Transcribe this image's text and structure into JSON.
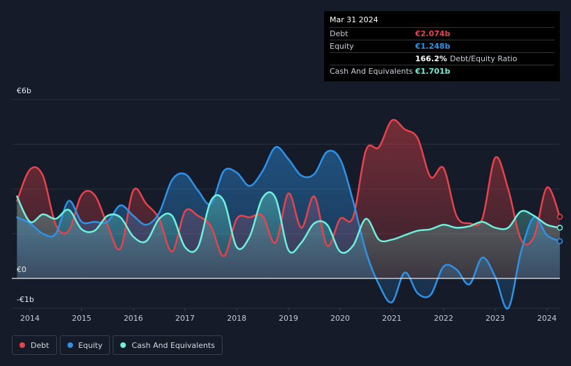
{
  "tooltip": {
    "date": "Mar 31 2024",
    "rows": {
      "debt": {
        "label": "Debt",
        "value": "€2.074b",
        "color": "#e8434b"
      },
      "equity": {
        "label": "Equity",
        "value": "€1.248b",
        "color": "#2e93e8"
      },
      "ratio": {
        "value": "166.2%",
        "desc": "Debt/Equity Ratio"
      },
      "cash": {
        "label": "Cash And Equivalents",
        "value": "€1.701b",
        "color": "#6ff0dc"
      }
    }
  },
  "legend": [
    {
      "label": "Debt",
      "color": "#e8434b"
    },
    {
      "label": "Equity",
      "color": "#2e93e8"
    },
    {
      "label": "Cash And Equivalents",
      "color": "#6ff0dc"
    }
  ],
  "chart_data": {
    "type": "area",
    "y_tick_labels": [
      {
        "value": 6,
        "label": "€6b"
      },
      {
        "value": 0,
        "label": "€0"
      },
      {
        "value": -1,
        "label": "-€1b"
      }
    ],
    "ylim": [
      -1,
      6
    ],
    "xlim": [
      2013.65,
      2024.25
    ],
    "x_ticks": [
      2014,
      2015,
      2016,
      2017,
      2018,
      2019,
      2020,
      2021,
      2022,
      2023,
      2024
    ],
    "grid": true,
    "legend_position": "bottom-left",
    "series": [
      {
        "name": "Debt",
        "color": "#e8434b",
        "x": [
          2013.75,
          2014.0,
          2014.25,
          2014.5,
          2014.75,
          2015.0,
          2015.25,
          2015.5,
          2015.75,
          2016.0,
          2016.25,
          2016.5,
          2016.75,
          2017.0,
          2017.25,
          2017.5,
          2017.75,
          2018.0,
          2018.25,
          2018.5,
          2018.75,
          2019.0,
          2019.25,
          2019.5,
          2019.75,
          2020.0,
          2020.25,
          2020.5,
          2020.75,
          2021.0,
          2021.25,
          2021.5,
          2021.75,
          2022.0,
          2022.25,
          2022.5,
          2022.75,
          2023.0,
          2023.25,
          2023.5,
          2023.75,
          2024.0,
          2024.25
        ],
        "values": [
          2.6,
          3.65,
          3.45,
          1.8,
          1.6,
          2.8,
          2.8,
          1.8,
          1.0,
          2.95,
          2.5,
          2.0,
          0.9,
          2.25,
          2.1,
          1.75,
          0.75,
          2.0,
          2.05,
          2.1,
          1.2,
          2.85,
          1.7,
          2.75,
          1.1,
          2.0,
          2.05,
          4.3,
          4.4,
          5.3,
          5.0,
          4.7,
          3.4,
          3.7,
          2.1,
          1.85,
          2.0,
          4.05,
          3.0,
          1.3,
          1.4,
          3.05,
          2.07
        ]
      },
      {
        "name": "Equity",
        "color": "#2e93e8",
        "x": [
          2013.75,
          2014.0,
          2014.25,
          2014.5,
          2014.75,
          2015.0,
          2015.25,
          2015.5,
          2015.75,
          2016.0,
          2016.25,
          2016.5,
          2016.75,
          2017.0,
          2017.25,
          2017.5,
          2017.75,
          2018.0,
          2018.25,
          2018.5,
          2018.75,
          2019.0,
          2019.25,
          2019.5,
          2019.75,
          2020.0,
          2020.25,
          2020.5,
          2020.75,
          2021.0,
          2021.25,
          2021.5,
          2021.75,
          2022.0,
          2022.25,
          2022.5,
          2022.75,
          2023.0,
          2023.25,
          2023.5,
          2023.75,
          2024.0,
          2024.25
        ],
        "values": [
          2.05,
          1.85,
          1.5,
          1.5,
          2.6,
          1.9,
          1.9,
          1.9,
          2.45,
          2.1,
          1.8,
          2.2,
          3.3,
          3.5,
          2.95,
          2.5,
          3.6,
          3.55,
          3.1,
          3.6,
          4.4,
          4.0,
          3.45,
          3.5,
          4.25,
          4.0,
          2.6,
          0.9,
          -0.2,
          -0.8,
          0.2,
          -0.5,
          -0.55,
          0.4,
          0.3,
          -0.2,
          0.7,
          0.05,
          -1.0,
          0.9,
          2.05,
          1.45,
          1.25
        ]
      },
      {
        "name": "Cash And Equivalents",
        "color": "#6ff0dc",
        "x": [
          2013.75,
          2014.0,
          2014.25,
          2014.5,
          2014.75,
          2015.0,
          2015.25,
          2015.5,
          2015.75,
          2016.0,
          2016.25,
          2016.5,
          2016.75,
          2017.0,
          2017.25,
          2017.5,
          2017.75,
          2018.0,
          2018.25,
          2018.5,
          2018.75,
          2019.0,
          2019.25,
          2019.5,
          2019.75,
          2020.0,
          2020.25,
          2020.5,
          2020.75,
          2021.0,
          2021.25,
          2021.5,
          2021.75,
          2022.0,
          2022.25,
          2022.5,
          2022.75,
          2023.0,
          2023.25,
          2023.5,
          2023.75,
          2024.0,
          2024.25
        ],
        "values": [
          2.75,
          1.9,
          2.15,
          2.0,
          2.3,
          1.65,
          1.6,
          2.1,
          2.05,
          1.4,
          1.25,
          2.0,
          2.1,
          1.05,
          1.05,
          2.6,
          2.6,
          1.05,
          1.4,
          2.7,
          2.7,
          0.95,
          1.2,
          1.85,
          1.8,
          0.9,
          1.1,
          2.0,
          1.3,
          1.3,
          1.45,
          1.6,
          1.65,
          1.8,
          1.7,
          1.75,
          1.9,
          1.7,
          1.7,
          2.25,
          2.1,
          1.8,
          1.7
        ]
      }
    ]
  }
}
